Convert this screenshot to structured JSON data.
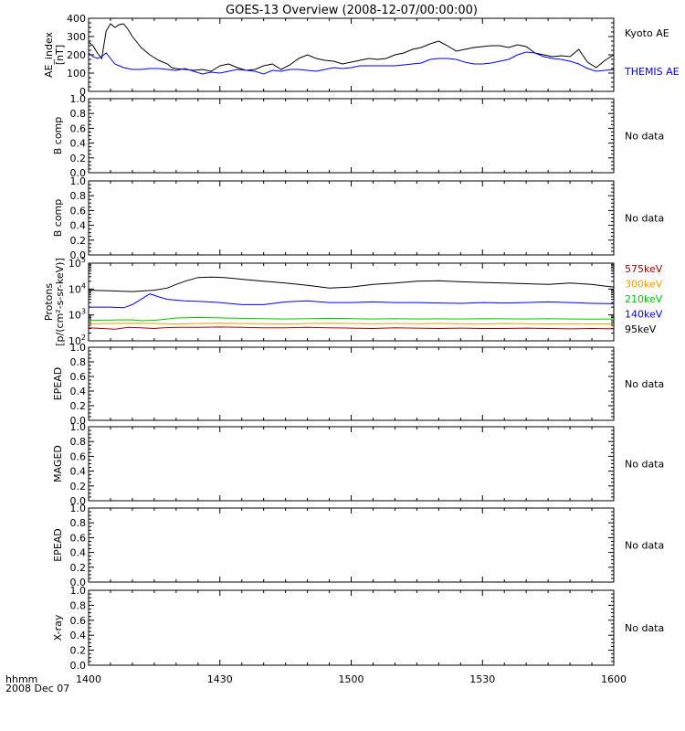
{
  "title": "GOES-13 Overview (2008-12-07/00:00:00)",
  "time_axis": {
    "ticks": [
      "1400",
      "1430",
      "1500",
      "1530",
      "1600"
    ],
    "unit_label": "hhmm",
    "date_label": "2008 Dec 07"
  },
  "no_data_text": "No data",
  "chart_data": [
    {
      "type": "line",
      "panel": "ae",
      "ylabel": [
        "AE_index",
        "[nT]"
      ],
      "ylim": [
        0,
        400
      ],
      "yticks": [
        "0",
        "100",
        "200",
        "300",
        "400"
      ],
      "xlim_minutes": [
        0,
        120
      ],
      "series": [
        {
          "name": "Kyoto AE",
          "color": "#000000",
          "x": [
            0,
            1,
            2,
            3,
            4,
            5,
            6,
            7,
            8,
            9,
            10,
            11,
            12,
            13,
            14,
            15,
            16,
            17,
            18,
            19,
            20,
            22,
            24,
            26,
            28,
            30,
            32,
            34,
            36,
            38,
            40,
            42,
            44,
            46,
            48,
            50,
            52,
            54,
            56,
            58,
            60,
            62,
            64,
            66,
            68,
            70,
            72,
            74,
            76,
            78,
            80,
            82,
            84,
            86,
            88,
            90,
            92,
            94,
            96,
            98,
            100,
            102,
            104,
            106,
            108,
            110,
            112,
            114,
            116,
            118,
            120
          ],
          "y": [
            270,
            250,
            210,
            180,
            330,
            370,
            350,
            365,
            370,
            340,
            300,
            270,
            240,
            220,
            200,
            185,
            170,
            160,
            150,
            130,
            125,
            120,
            115,
            120,
            110,
            140,
            150,
            130,
            115,
            120,
            140,
            150,
            120,
            145,
            180,
            200,
            180,
            170,
            165,
            150,
            160,
            170,
            180,
            175,
            180,
            200,
            210,
            230,
            240,
            260,
            275,
            250,
            220,
            230,
            240,
            245,
            250,
            250,
            240,
            255,
            245,
            210,
            200,
            190,
            195,
            190,
            230,
            160,
            130,
            170,
            200
          ]
        },
        {
          "name": "THEMIS AE",
          "color": "#0000ff",
          "x": [
            0,
            1,
            2,
            3,
            4,
            5,
            6,
            7,
            8,
            9,
            10,
            12,
            14,
            16,
            18,
            20,
            22,
            24,
            26,
            28,
            30,
            32,
            34,
            36,
            38,
            40,
            42,
            44,
            46,
            48,
            50,
            52,
            54,
            56,
            58,
            60,
            62,
            64,
            66,
            68,
            70,
            72,
            74,
            76,
            78,
            80,
            82,
            84,
            86,
            88,
            90,
            92,
            94,
            96,
            98,
            100,
            102,
            104,
            106,
            108,
            110,
            112,
            114,
            116,
            118,
            120
          ],
          "y": [
            210,
            190,
            180,
            190,
            210,
            180,
            150,
            140,
            130,
            125,
            120,
            120,
            125,
            125,
            120,
            115,
            125,
            110,
            95,
            105,
            100,
            110,
            120,
            115,
            110,
            95,
            115,
            110,
            120,
            120,
            115,
            110,
            120,
            130,
            125,
            130,
            140,
            140,
            140,
            140,
            140,
            145,
            150,
            155,
            175,
            180,
            180,
            175,
            160,
            150,
            150,
            155,
            165,
            175,
            200,
            215,
            210,
            190,
            180,
            175,
            165,
            150,
            125,
            110,
            115,
            120
          ]
        }
      ]
    },
    {
      "type": "line",
      "panel": "b_comp_1",
      "ylabel": [
        "B comp"
      ],
      "ylim": [
        0,
        1
      ],
      "yticks": [
        "0.0",
        "0.2",
        "0.4",
        "0.6",
        "0.8",
        "1.0"
      ],
      "status": "No data",
      "series": []
    },
    {
      "type": "line",
      "panel": "b_comp_2",
      "ylabel": [
        "B comp"
      ],
      "ylim": [
        0,
        1
      ],
      "yticks": [
        "0.0",
        "0.2",
        "0.4",
        "0.6",
        "0.8",
        "1.0"
      ],
      "status": "No data",
      "series": []
    },
    {
      "type": "line",
      "panel": "protons",
      "scale": "log",
      "ylabel": [
        "Protons",
        "[p/(cm²-s-sr-keV)]"
      ],
      "ylim": [
        100,
        100000
      ],
      "ytick_exponents": [
        2,
        3,
        4,
        5
      ],
      "xlim_minutes": [
        0,
        120
      ],
      "series": [
        {
          "name": "95keV",
          "color": "#000000",
          "x": [
            0,
            5,
            10,
            15,
            18,
            20,
            22,
            25,
            28,
            31,
            35,
            40,
            45,
            50,
            55,
            60,
            65,
            70,
            75,
            80,
            85,
            90,
            95,
            100,
            105,
            110,
            115,
            118,
            120
          ],
          "y": [
            9000,
            8500,
            8000,
            9000,
            11000,
            15000,
            20000,
            28000,
            29000,
            28000,
            24000,
            20000,
            17000,
            14000,
            11000,
            12000,
            15000,
            17000,
            20000,
            21000,
            19000,
            18000,
            17000,
            16000,
            15000,
            17000,
            15000,
            13000,
            12000
          ]
        },
        {
          "name": "140keV",
          "color": "#0000ff",
          "x": [
            0,
            5,
            8,
            10,
            12,
            14,
            16,
            18,
            22,
            26,
            30,
            35,
            40,
            45,
            50,
            55,
            60,
            65,
            70,
            75,
            80,
            85,
            90,
            95,
            100,
            105,
            110,
            115,
            120
          ],
          "y": [
            2000,
            2000,
            1900,
            2500,
            4000,
            6500,
            5000,
            4000,
            3500,
            3300,
            3000,
            2500,
            2500,
            3200,
            3500,
            3000,
            3000,
            3200,
            3000,
            3000,
            2900,
            2800,
            3000,
            2900,
            3000,
            3200,
            3000,
            2800,
            2700
          ]
        },
        {
          "name": "210keV",
          "color": "#00cc00",
          "x": [
            0,
            5,
            10,
            12,
            15,
            18,
            20,
            25,
            30,
            35,
            40,
            45,
            50,
            55,
            60,
            65,
            70,
            75,
            80,
            85,
            90,
            95,
            100,
            105,
            110,
            115,
            120
          ],
          "y": [
            620,
            640,
            650,
            600,
            620,
            700,
            760,
            800,
            770,
            740,
            720,
            700,
            720,
            740,
            720,
            700,
            720,
            700,
            710,
            700,
            720,
            710,
            700,
            720,
            700,
            690,
            700
          ]
        },
        {
          "name": "300keV",
          "color": "#ff9900",
          "x": [
            0,
            5,
            10,
            15,
            20,
            25,
            30,
            35,
            40,
            45,
            50,
            55,
            60,
            65,
            70,
            75,
            80,
            85,
            90,
            95,
            100,
            105,
            110,
            115,
            120
          ],
          "y": [
            460,
            470,
            480,
            470,
            450,
            470,
            480,
            470,
            460,
            450,
            470,
            480,
            470,
            460,
            470,
            460,
            470,
            460,
            450,
            470,
            460,
            450,
            460,
            450,
            450
          ]
        },
        {
          "name": "575keV",
          "color": "#aa0000",
          "x": [
            0,
            3,
            6,
            9,
            12,
            15,
            17,
            20,
            25,
            30,
            35,
            40,
            45,
            50,
            55,
            60,
            65,
            70,
            75,
            80,
            85,
            90,
            95,
            100,
            105,
            110,
            115,
            120
          ],
          "y": [
            320,
            300,
            280,
            330,
            320,
            300,
            320,
            330,
            330,
            340,
            330,
            320,
            320,
            330,
            320,
            310,
            300,
            320,
            310,
            300,
            310,
            300,
            300,
            310,
            300,
            290,
            300,
            290
          ]
        }
      ]
    },
    {
      "type": "line",
      "panel": "epead_1",
      "ylabel": [
        "EPEAD"
      ],
      "ylim": [
        0,
        1
      ],
      "yticks": [
        "0.0",
        "0.2",
        "0.4",
        "0.6",
        "0.8",
        "1.0"
      ],
      "status": "No data",
      "series": []
    },
    {
      "type": "line",
      "panel": "maged",
      "ylabel": [
        "MAGED"
      ],
      "ylim": [
        0,
        1
      ],
      "yticks": [
        "0.0",
        "0.2",
        "0.4",
        "0.6",
        "0.8",
        "1.0"
      ],
      "status": "No data",
      "series": []
    },
    {
      "type": "line",
      "panel": "epead_2",
      "ylabel": [
        "EPEAD"
      ],
      "ylim": [
        0,
        1
      ],
      "yticks": [
        "0.0",
        "0.2",
        "0.4",
        "0.6",
        "0.8",
        "1.0"
      ],
      "status": "No data",
      "series": []
    },
    {
      "type": "line",
      "panel": "xray",
      "ylabel": [
        "X-ray"
      ],
      "ylim": [
        0,
        1
      ],
      "yticks": [
        "0.0",
        "0.2",
        "0.4",
        "0.6",
        "0.8",
        "1.0"
      ],
      "status": "No data",
      "series": []
    }
  ]
}
